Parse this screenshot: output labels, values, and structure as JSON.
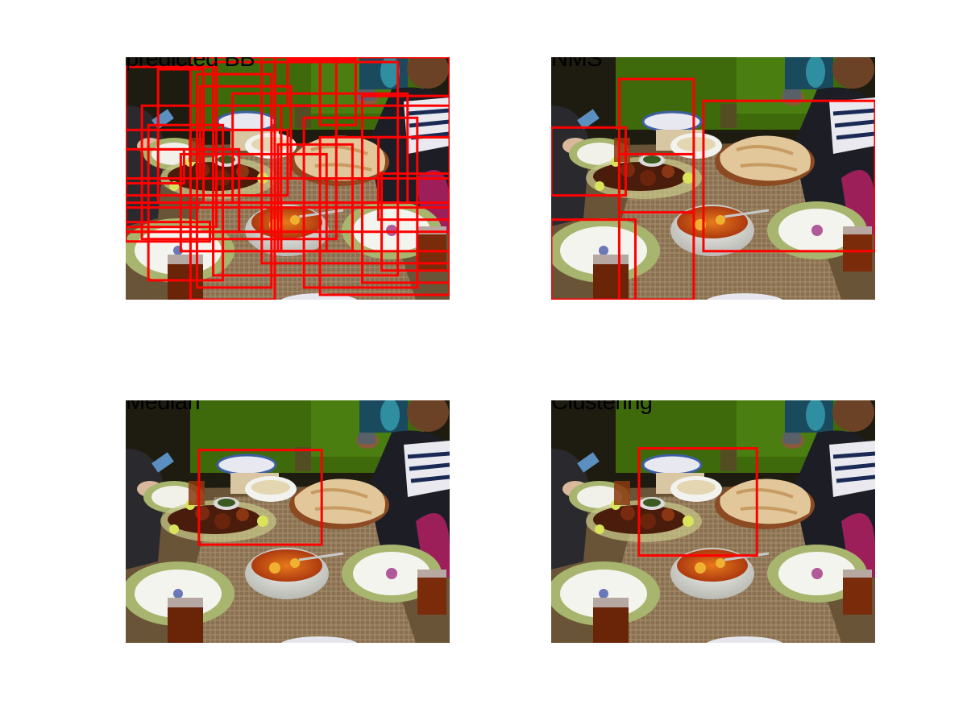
{
  "panels": [
    {
      "id": "p1",
      "title": "predicted BB",
      "boxes": [
        [
          0.0,
          0.04,
          0.28,
          0.7
        ],
        [
          0.1,
          0.05,
          0.24,
          0.6
        ],
        [
          0.2,
          0.0,
          0.46,
          1.0
        ],
        [
          0.22,
          0.07,
          0.45,
          0.95
        ],
        [
          0.23,
          0.12,
          0.51,
          0.5
        ],
        [
          0.27,
          0.02,
          0.84,
          0.9
        ],
        [
          0.33,
          0.15,
          0.87,
          0.6
        ],
        [
          0.42,
          0.0,
          1.0,
          0.85
        ],
        [
          0.48,
          0.2,
          1.0,
          0.8
        ],
        [
          0.55,
          0.25,
          0.9,
          0.95
        ],
        [
          0.05,
          0.2,
          0.65,
          0.75
        ],
        [
          0.07,
          0.28,
          0.3,
          0.92
        ],
        [
          0.0,
          0.3,
          0.5,
          0.57
        ],
        [
          0.0,
          0.38,
          0.35,
          0.72
        ],
        [
          0.0,
          0.5,
          1.0,
          0.6
        ],
        [
          0.0,
          0.62,
          1.0,
          0.72
        ],
        [
          0.17,
          0.4,
          0.62,
          0.8
        ],
        [
          0.47,
          0.36,
          0.7,
          0.8
        ],
        [
          0.6,
          0.33,
          1.0,
          0.98
        ],
        [
          0.78,
          0.33,
          1.0,
          0.67
        ],
        [
          0.79,
          0.48,
          1.0,
          0.88
        ],
        [
          0.73,
          0.16,
          1.0,
          0.93
        ],
        [
          0.5,
          0.01,
          0.65,
          0.2
        ],
        [
          0.6,
          0.01,
          0.71,
          0.28
        ],
        [
          0.0,
          0.38,
          0.18,
          0.52
        ],
        [
          0.0,
          0.68,
          0.26,
          0.76
        ]
      ]
    },
    {
      "id": "p2",
      "title": "NMS",
      "boxes": [
        [
          0.21,
          0.09,
          0.44,
          1.0
        ],
        [
          0.47,
          0.18,
          1.0,
          0.8
        ],
        [
          0.0,
          0.29,
          0.23,
          0.57
        ],
        [
          0.0,
          0.67,
          0.26,
          1.0
        ],
        [
          0.21,
          0.4,
          0.44,
          0.64
        ]
      ]
    },
    {
      "id": "p3",
      "title": "Median",
      "boxes": [
        [
          0.226,
          0.205,
          0.605,
          0.595
        ]
      ]
    },
    {
      "id": "p4",
      "title": "Clustering",
      "boxes": [
        [
          0.271,
          0.198,
          0.635,
          0.64
        ]
      ]
    }
  ],
  "colors": {
    "box": "#ff0000"
  }
}
